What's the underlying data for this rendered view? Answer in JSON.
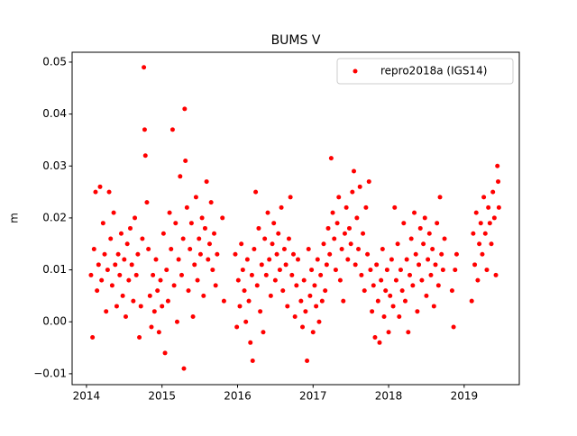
{
  "chart_data": {
    "type": "scatter",
    "title": "BUMS V",
    "ylabel": "m",
    "legend": "upper right",
    "xlim": [
      2013.81,
      2019.73
    ],
    "xticks": [
      2014,
      2015,
      2016,
      2017,
      2018,
      2019
    ],
    "ylim": [
      -0.0121,
      0.0519
    ],
    "yticks": [
      {
        "value": -0.01,
        "label": "−0.01"
      },
      {
        "value": 0,
        "label": "0.00"
      },
      0.01,
      0.02,
      0.03,
      0.04,
      0.05
    ],
    "x": [
      2014.06,
      2014.08,
      2014.1,
      2014.12,
      2014.14,
      2014.16,
      2014.18,
      2014.2,
      2014.22,
      2014.24,
      2014.26,
      2014.28,
      2014.3,
      2014.32,
      2014.34,
      2014.36,
      2014.38,
      2014.4,
      2014.42,
      2014.44,
      2014.46,
      2014.48,
      2014.5,
      2014.52,
      2014.54,
      2014.56,
      2014.58,
      2014.6,
      2014.62,
      2014.64,
      2014.66,
      2014.68,
      2014.7,
      2014.72,
      2014.74,
      2014.76,
      2014.77,
      2014.78,
      2014.8,
      2014.82,
      2014.84,
      2014.86,
      2014.88,
      2014.9,
      2014.92,
      2014.94,
      2014.96,
      2014.98,
      2015.0,
      2015.02,
      2015.04,
      2015.06,
      2015.08,
      2015.1,
      2015.12,
      2015.14,
      2015.16,
      2015.18,
      2015.2,
      2015.22,
      2015.24,
      2015.26,
      2015.28,
      2015.29,
      2015.3,
      2015.31,
      2015.33,
      2015.35,
      2015.37,
      2015.39,
      2015.41,
      2015.43,
      2015.45,
      2015.47,
      2015.49,
      2015.51,
      2015.53,
      2015.55,
      2015.57,
      2015.59,
      2015.61,
      2015.63,
      2015.65,
      2015.67,
      2015.69,
      2015.71,
      2015.73,
      2015.8,
      2015.82,
      2015.97,
      2015.99,
      2016.01,
      2016.03,
      2016.05,
      2016.07,
      2016.09,
      2016.11,
      2016.13,
      2016.15,
      2016.17,
      2016.19,
      2016.2,
      2016.22,
      2016.24,
      2016.26,
      2016.28,
      2016.3,
      2016.32,
      2016.34,
      2016.36,
      2016.38,
      2016.4,
      2016.42,
      2016.44,
      2016.46,
      2016.48,
      2016.5,
      2016.52,
      2016.54,
      2016.56,
      2016.58,
      2016.6,
      2016.62,
      2016.64,
      2016.66,
      2016.68,
      2016.7,
      2016.72,
      2016.74,
      2016.76,
      2016.78,
      2016.8,
      2016.84,
      2016.86,
      2016.88,
      2016.9,
      2016.92,
      2016.94,
      2016.96,
      2016.98,
      2017.0,
      2017.02,
      2017.04,
      2017.06,
      2017.08,
      2017.1,
      2017.12,
      2017.14,
      2017.16,
      2017.18,
      2017.2,
      2017.22,
      2017.24,
      2017.26,
      2017.28,
      2017.3,
      2017.32,
      2017.34,
      2017.36,
      2017.38,
      2017.4,
      2017.42,
      2017.44,
      2017.46,
      2017.48,
      2017.5,
      2017.52,
      2017.54,
      2017.56,
      2017.58,
      2017.6,
      2017.62,
      2017.64,
      2017.66,
      2017.68,
      2017.7,
      2017.72,
      2017.74,
      2017.76,
      2017.78,
      2017.8,
      2017.82,
      2017.84,
      2017.86,
      2017.88,
      2017.9,
      2017.92,
      2017.94,
      2017.96,
      2017.98,
      2018.0,
      2018.02,
      2018.04,
      2018.06,
      2018.08,
      2018.1,
      2018.12,
      2018.14,
      2018.16,
      2018.18,
      2018.2,
      2018.22,
      2018.24,
      2018.26,
      2018.28,
      2018.3,
      2018.32,
      2018.34,
      2018.36,
      2018.38,
      2018.4,
      2018.42,
      2018.44,
      2018.46,
      2018.48,
      2018.5,
      2018.52,
      2018.54,
      2018.56,
      2018.58,
      2018.6,
      2018.62,
      2018.64,
      2018.66,
      2018.68,
      2018.7,
      2018.72,
      2018.74,
      2018.84,
      2018.86,
      2018.88,
      2018.9,
      2019.1,
      2019.12,
      2019.14,
      2019.16,
      2019.18,
      2019.2,
      2019.22,
      2019.24,
      2019.26,
      2019.28,
      2019.3,
      2019.32,
      2019.34,
      2019.36,
      2019.38,
      2019.4,
      2019.42,
      2019.44,
      2019.45,
      2019.46
    ],
    "series": [
      {
        "name": "repro2018a (IGS14)",
        "color": "#ff0000",
        "values": [
          0.009,
          -0.003,
          0.014,
          0.025,
          0.006,
          0.011,
          0.026,
          0.008,
          0.019,
          0.013,
          0.002,
          0.01,
          0.025,
          0.016,
          0.007,
          0.021,
          0.011,
          0.003,
          0.013,
          0.009,
          0.017,
          0.005,
          0.012,
          0.001,
          0.015,
          0.008,
          0.018,
          0.011,
          0.004,
          0.02,
          0.009,
          0.013,
          -0.003,
          0.003,
          0.016,
          0.049,
          0.037,
          0.032,
          0.023,
          0.014,
          0.005,
          -0.001,
          0.009,
          0.002,
          0.012,
          0.006,
          -0.002,
          0.008,
          0.003,
          0.017,
          -0.006,
          0.01,
          0.004,
          0.021,
          0.014,
          0.037,
          0.007,
          0.019,
          0.0,
          0.012,
          0.028,
          0.009,
          0.016,
          -0.009,
          0.041,
          0.031,
          0.022,
          0.006,
          0.014,
          0.019,
          0.001,
          0.011,
          0.024,
          0.008,
          0.016,
          0.013,
          0.02,
          0.005,
          0.018,
          0.027,
          0.012,
          0.015,
          0.023,
          0.01,
          0.017,
          0.007,
          0.013,
          0.02,
          0.004,
          0.013,
          -0.001,
          0.008,
          0.003,
          0.015,
          0.01,
          0.006,
          0.0,
          0.012,
          0.004,
          -0.004,
          0.009,
          -0.0075,
          0.014,
          0.025,
          0.007,
          0.018,
          0.002,
          0.011,
          -0.002,
          0.016,
          0.009,
          0.021,
          0.012,
          0.005,
          0.015,
          0.019,
          0.008,
          0.013,
          0.017,
          0.01,
          0.022,
          0.006,
          0.014,
          0.011,
          0.003,
          0.016,
          0.024,
          0.009,
          0.013,
          0.001,
          0.007,
          0.012,
          0.004,
          -0.001,
          0.008,
          0.002,
          -0.0075,
          0.014,
          0.005,
          0.01,
          -0.002,
          0.007,
          0.003,
          0.012,
          0.0,
          0.009,
          0.004,
          0.015,
          0.006,
          0.011,
          0.018,
          0.013,
          0.0315,
          0.021,
          0.016,
          0.01,
          0.019,
          0.024,
          0.008,
          0.014,
          0.004,
          0.017,
          0.022,
          0.012,
          0.018,
          0.015,
          0.025,
          0.029,
          0.011,
          0.02,
          0.014,
          0.026,
          0.009,
          0.017,
          0.006,
          0.022,
          0.013,
          0.027,
          0.01,
          0.002,
          0.007,
          -0.003,
          0.011,
          0.004,
          -0.004,
          0.008,
          0.014,
          0.001,
          0.006,
          0.01,
          -0.002,
          0.005,
          0.012,
          0.003,
          0.022,
          0.008,
          0.015,
          0.001,
          0.01,
          0.006,
          0.019,
          0.004,
          0.012,
          -0.002,
          0.009,
          0.016,
          0.007,
          0.021,
          0.013,
          0.002,
          0.011,
          0.018,
          0.008,
          0.015,
          0.02,
          0.005,
          0.012,
          0.017,
          0.009,
          0.014,
          0.003,
          0.011,
          0.019,
          0.007,
          0.024,
          0.013,
          0.01,
          0.016,
          0.006,
          -0.001,
          0.01,
          0.013,
          0.004,
          0.017,
          0.011,
          0.021,
          0.008,
          0.015,
          0.019,
          0.013,
          0.024,
          0.017,
          0.01,
          0.022,
          0.019,
          0.015,
          0.025,
          0.02,
          0.009,
          0.03,
          0.027,
          0.022
        ]
      }
    ]
  }
}
